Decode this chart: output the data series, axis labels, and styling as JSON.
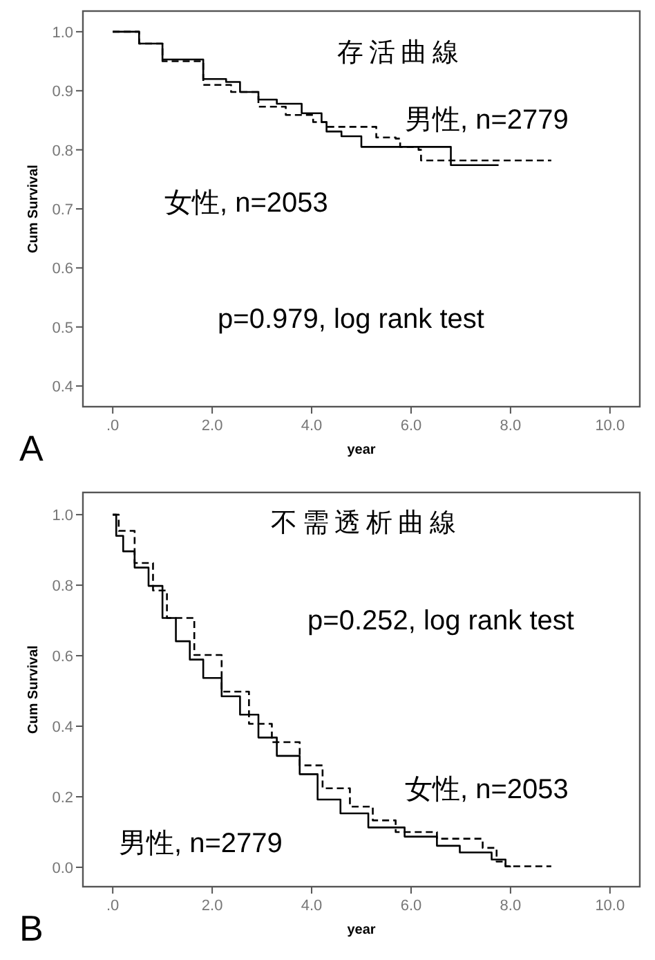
{
  "chart_data": [
    {
      "type": "step",
      "title": "存活曲線",
      "xlabel": "year",
      "ylabel": "Cum Survival",
      "xlim": [
        -0.6,
        10.6
      ],
      "ylim": [
        0.365,
        1.035
      ],
      "xticks": [
        {
          "value": 0,
          "label": ".0"
        },
        {
          "value": 2,
          "label": "2.0"
        },
        {
          "value": 4,
          "label": "4.0"
        },
        {
          "value": 6,
          "label": "6.0"
        },
        {
          "value": 8,
          "label": "8.0"
        },
        {
          "value": 10,
          "label": "10.0"
        }
      ],
      "yticks": [
        {
          "value": 0.4,
          "label": "0.4"
        },
        {
          "value": 0.5,
          "label": "0.5"
        },
        {
          "value": 0.6,
          "label": "0.6"
        },
        {
          "value": 0.7,
          "label": "0.7"
        },
        {
          "value": 0.8,
          "label": "0.8"
        },
        {
          "value": 0.9,
          "label": "0.9"
        },
        {
          "value": 1.0,
          "label": "1.0"
        }
      ],
      "series": [
        {
          "color": "#000000",
          "line_style": "solid",
          "x": [
            0,
            0.53,
            1.0,
            1.82,
            2.28,
            2.56,
            2.93,
            3.3,
            3.8,
            4.2,
            4.3,
            4.6,
            5.0,
            6.8,
            7.76
          ],
          "values": [
            1.0,
            0.98,
            0.953,
            0.92,
            0.915,
            0.898,
            0.885,
            0.878,
            0.862,
            0.847,
            0.831,
            0.823,
            0.805,
            0.774,
            0.774
          ]
        },
        {
          "color": "#000000",
          "line_style": "dashed",
          "x": [
            0,
            0.53,
            1.0,
            1.82,
            2.38,
            2.93,
            3.48,
            4.03,
            4.3,
            5.3,
            5.69,
            5.78,
            6.15,
            6.2,
            8.82
          ],
          "values": [
            1.0,
            0.98,
            0.95,
            0.91,
            0.898,
            0.873,
            0.859,
            0.847,
            0.839,
            0.821,
            0.819,
            0.805,
            0.8,
            0.782,
            0.782
          ]
        }
      ],
      "annotations": [
        "男性, n=2779",
        "女性, n=2053",
        "p=0.979, log rank test",
        "A"
      ]
    },
    {
      "type": "step",
      "title": "不需透析曲線",
      "xlabel": "year",
      "ylabel": "Cum Survival",
      "xlim": [
        -0.6,
        10.6
      ],
      "ylim": [
        -0.055,
        1.063
      ],
      "xticks": [
        {
          "value": 0,
          "label": ".0"
        },
        {
          "value": 2,
          "label": "2.0"
        },
        {
          "value": 4,
          "label": "4.0"
        },
        {
          "value": 6,
          "label": "6.0"
        },
        {
          "value": 8,
          "label": "8.0"
        },
        {
          "value": 10,
          "label": "10.0"
        }
      ],
      "yticks": [
        {
          "value": 0,
          "label": "0.0"
        },
        {
          "value": 0.2,
          "label": "0.2"
        },
        {
          "value": 0.4,
          "label": "0.4"
        },
        {
          "value": 0.6,
          "label": "0.6"
        },
        {
          "value": 0.8,
          "label": "0.8"
        },
        {
          "value": 1.0,
          "label": "1.0"
        }
      ],
      "series": [
        {
          "color": "#000000",
          "line_style": "solid",
          "x": [
            0,
            0.07,
            0.21,
            0.44,
            0.72,
            1.0,
            1.27,
            1.55,
            1.82,
            2.19,
            2.56,
            2.93,
            3.3,
            3.76,
            4.12,
            4.58,
            5.14,
            5.87,
            6.52,
            6.98,
            7.62,
            7.9,
            7.99
          ],
          "values": [
            1.0,
            0.94,
            0.896,
            0.85,
            0.798,
            0.707,
            0.641,
            0.589,
            0.537,
            0.485,
            0.433,
            0.368,
            0.316,
            0.264,
            0.192,
            0.153,
            0.113,
            0.087,
            0.061,
            0.042,
            0.022,
            0.003,
            0.0
          ]
        },
        {
          "color": "#000000",
          "line_style": "dashed",
          "x": [
            0,
            0.12,
            0.44,
            0.81,
            1.09,
            1.64,
            2.19,
            2.74,
            3.2,
            3.76,
            4.22,
            4.77,
            5.23,
            5.69,
            6.52,
            7.44,
            7.72,
            7.9,
            8.82
          ],
          "values": [
            1.0,
            0.954,
            0.863,
            0.785,
            0.707,
            0.602,
            0.498,
            0.407,
            0.355,
            0.289,
            0.224,
            0.172,
            0.133,
            0.1,
            0.081,
            0.055,
            0.016,
            0.003,
            0.003
          ]
        }
      ],
      "annotations": [
        "女性, n=2053",
        "男性, n=2779",
        "p=0.252, log rank test",
        "B"
      ]
    }
  ]
}
